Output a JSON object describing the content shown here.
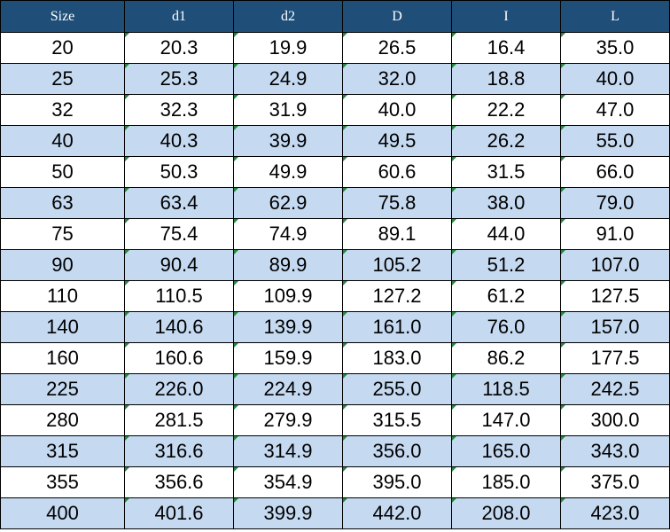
{
  "table": {
    "header": [
      "Size",
      "d1",
      "d2",
      "D",
      "I",
      "L"
    ],
    "rows": [
      [
        "20",
        "20.3",
        "19.9",
        "26.5",
        "16.4",
        "35.0"
      ],
      [
        "25",
        "25.3",
        "24.9",
        "32.0",
        "18.8",
        "40.0"
      ],
      [
        "32",
        "32.3",
        "31.9",
        "40.0",
        "22.2",
        "47.0"
      ],
      [
        "40",
        "40.3",
        "39.9",
        "49.5",
        "26.2",
        "55.0"
      ],
      [
        "50",
        "50.3",
        "49.9",
        "60.6",
        "31.5",
        "66.0"
      ],
      [
        "63",
        "63.4",
        "62.9",
        "75.8",
        "38.0",
        "79.0"
      ],
      [
        "75",
        "75.4",
        "74.9",
        "89.1",
        "44.0",
        "91.0"
      ],
      [
        "90",
        "90.4",
        "89.9",
        "105.2",
        "51.2",
        "107.0"
      ],
      [
        "110",
        "110.5",
        "109.9",
        "127.2",
        "61.2",
        "127.5"
      ],
      [
        "140",
        "140.6",
        "139.9",
        "161.0",
        "76.0",
        "157.0"
      ],
      [
        "160",
        "160.6",
        "159.9",
        "183.0",
        "86.2",
        "177.5"
      ],
      [
        "225",
        "226.0",
        "224.9",
        "255.0",
        "118.5",
        "242.5"
      ],
      [
        "280",
        "281.5",
        "279.9",
        "315.5",
        "147.0",
        "300.0"
      ],
      [
        "315",
        "316.6",
        "314.9",
        "356.0",
        "165.0",
        "343.0"
      ],
      [
        "355",
        "356.6",
        "354.9",
        "395.0",
        "185.0",
        "375.0"
      ],
      [
        "400",
        "401.6",
        "399.9",
        "442.0",
        "208.0",
        "423.0"
      ]
    ]
  }
}
